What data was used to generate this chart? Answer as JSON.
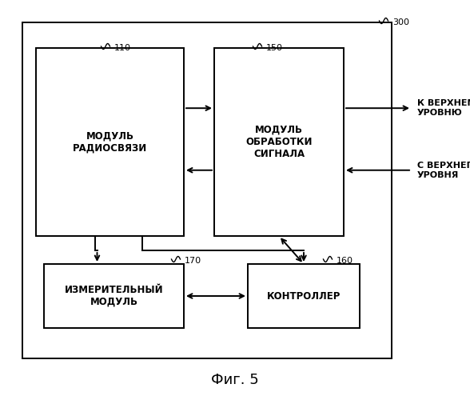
{
  "fig_width": 5.88,
  "fig_height": 5.0,
  "dpi": 100,
  "bg_color": "#ffffff",
  "radio_label": "МОДУЛЬ\nРАДИОСВЯЗИ",
  "signal_label": "МОДУЛЬ\nОБРАБОТКИ\nСИГНАЛА",
  "ctrl_label": "КОНТРОЛЛЕР",
  "meas_label": "ИЗМЕРИТЕЛЬНЫЙ\nМОДУЛЬ",
  "to_upper": "К ВЕРХНЕМУ\nУРОВНЮ",
  "from_upper": "С ВЕРХНЕГО\nУРОВНЯ",
  "title": "Фиг. 5",
  "lbl_300": "300",
  "lbl_110": "110",
  "lbl_150": "150",
  "lbl_160": "160",
  "lbl_170": "170"
}
